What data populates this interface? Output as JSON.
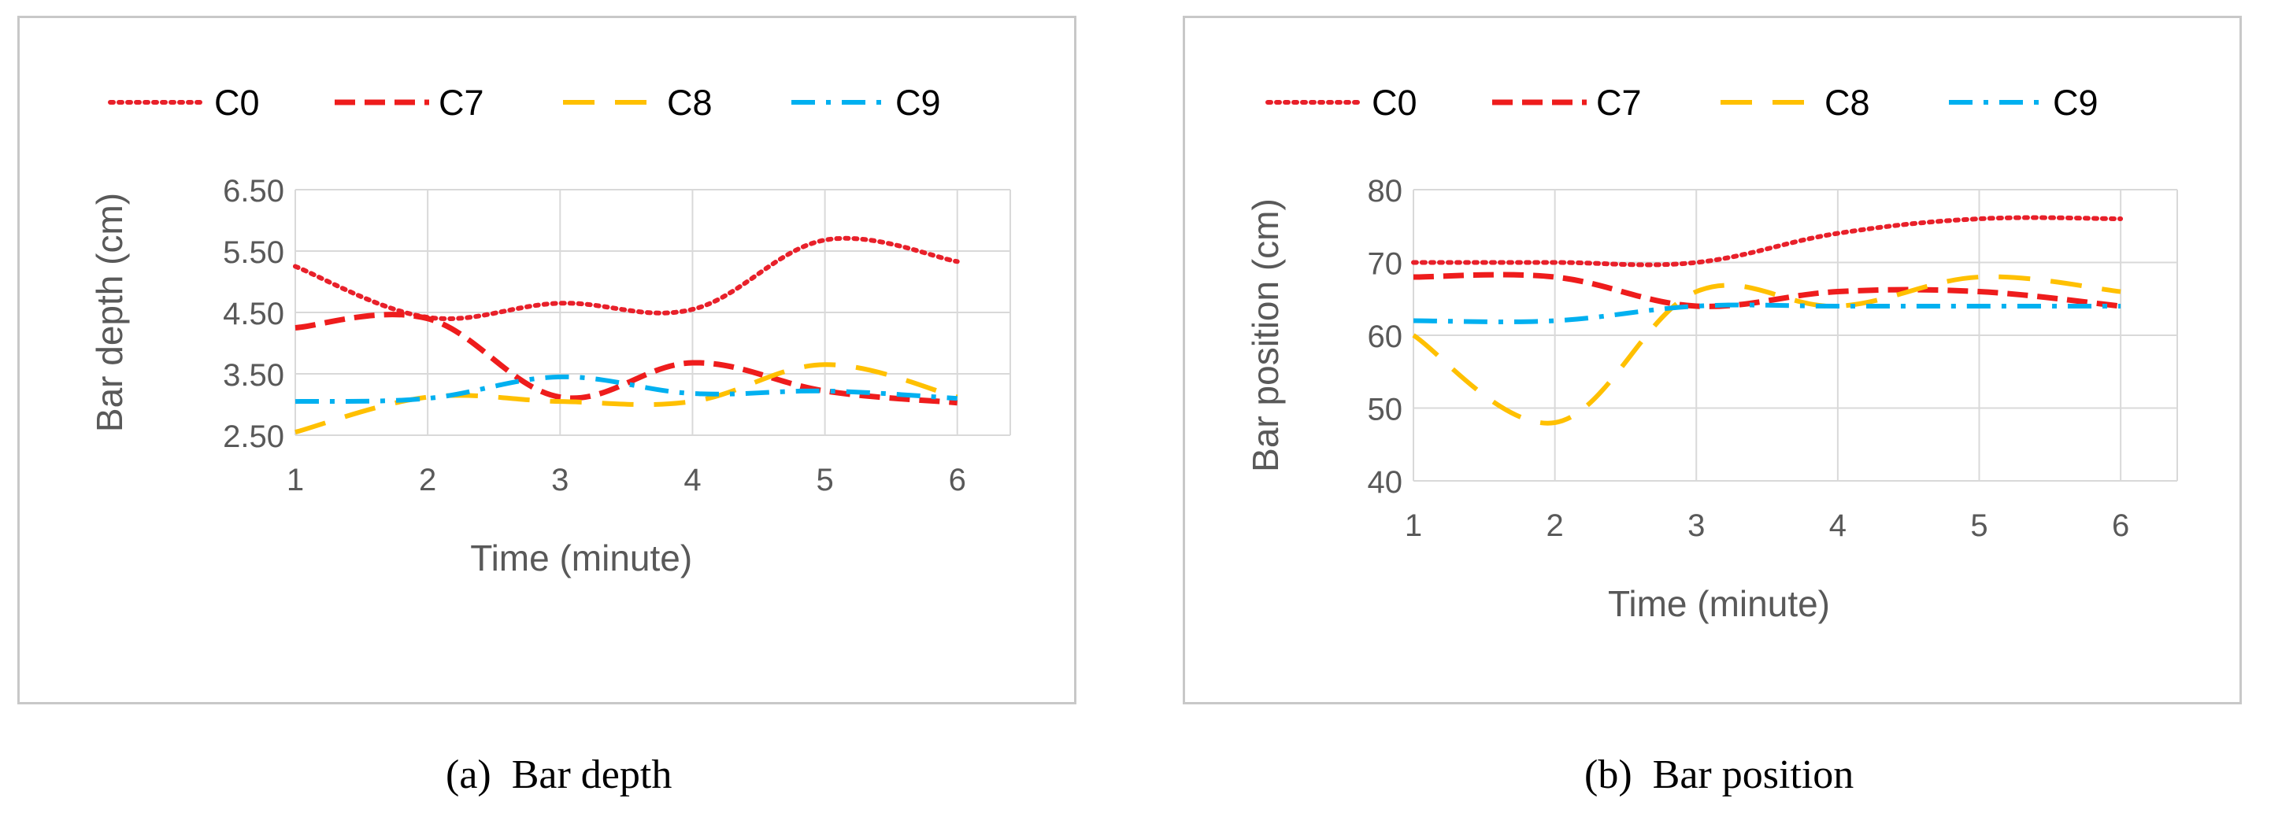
{
  "colors": {
    "C0": "#e8202a",
    "C7": "#ee1c1c",
    "C8": "#ffc000",
    "C9": "#00b0f0",
    "grid": "#d9d9d9",
    "text": "#595959"
  },
  "chart_data": [
    {
      "type": "line",
      "title": "",
      "xlabel": "Time (minute)",
      "ylabel": "Bar depth (cm)",
      "x": [
        1,
        2,
        3,
        4,
        5,
        6
      ],
      "xlim": [
        1,
        6.4
      ],
      "ylim": [
        2.5,
        6.5
      ],
      "yticks": [
        "2.50",
        "3.50",
        "4.50",
        "5.50",
        "6.50"
      ],
      "xticks": [
        "1",
        "2",
        "3",
        "4",
        "5",
        "6"
      ],
      "grid": true,
      "legend": "top",
      "series": [
        {
          "name": "C0",
          "values": [
            5.25,
            4.42,
            4.65,
            4.55,
            5.68,
            5.33
          ],
          "style": "dotted"
        },
        {
          "name": "C7",
          "values": [
            4.25,
            4.4,
            3.12,
            3.68,
            3.22,
            3.03
          ],
          "style": "dashed"
        },
        {
          "name": "C8",
          "values": [
            2.55,
            3.12,
            3.05,
            3.05,
            3.65,
            3.12
          ],
          "style": "longdash"
        },
        {
          "name": "C9",
          "values": [
            3.05,
            3.1,
            3.45,
            3.18,
            3.22,
            3.1
          ],
          "style": "dashdot"
        }
      ],
      "caption": "(a)  Bar depth"
    },
    {
      "type": "line",
      "title": "",
      "xlabel": "Time (minute)",
      "ylabel": "Bar position (cm)",
      "x": [
        1,
        2,
        3,
        4,
        5,
        6
      ],
      "xlim": [
        1,
        6.4
      ],
      "ylim": [
        40,
        80
      ],
      "yticks": [
        "40",
        "50",
        "60",
        "70",
        "80"
      ],
      "xticks": [
        "1",
        "2",
        "3",
        "4",
        "5",
        "6"
      ],
      "grid": true,
      "legend": "top",
      "series": [
        {
          "name": "C0",
          "values": [
            70,
            70,
            70,
            74,
            76,
            76
          ],
          "style": "dotted"
        },
        {
          "name": "C7",
          "values": [
            68,
            68,
            64,
            66,
            66,
            64
          ],
          "style": "dashed"
        },
        {
          "name": "C8",
          "values": [
            60,
            48,
            66,
            64,
            68,
            66
          ],
          "style": "longdash"
        },
        {
          "name": "C9",
          "values": [
            62,
            62,
            64,
            64,
            64,
            64
          ],
          "style": "dashdot"
        }
      ],
      "caption": "(b)  Bar position"
    }
  ]
}
